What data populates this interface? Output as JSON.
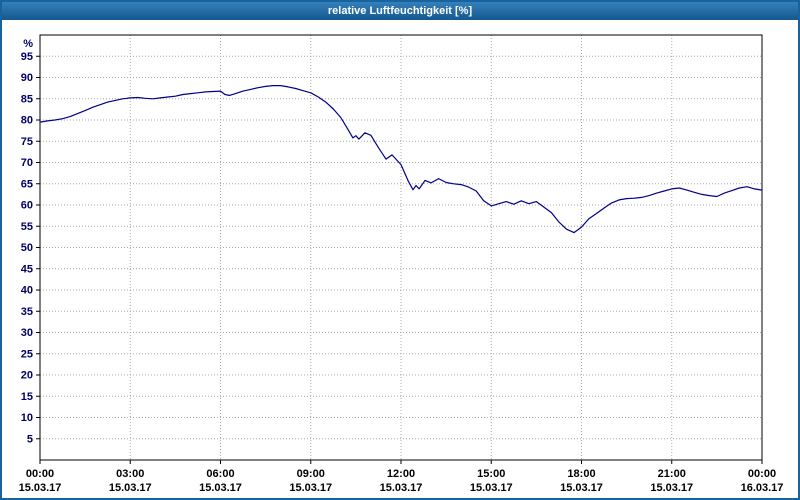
{
  "window": {
    "title": "relative Luftfeuchtigkeit [%]"
  },
  "chart_data": {
    "type": "line",
    "title": "relative Luftfeuchtigkeit [%]",
    "xlabel": "",
    "ylabel": "%",
    "ylim": [
      0,
      100
    ],
    "xlim_hours": [
      0,
      24
    ],
    "grid": true,
    "legend_position": "none",
    "line_color": "#00008b",
    "grid_color": "#a8a8a8",
    "axis_label_color": "#000066",
    "y_ticks": [
      5,
      10,
      15,
      20,
      25,
      30,
      35,
      40,
      45,
      50,
      55,
      60,
      65,
      70,
      75,
      80,
      85,
      90,
      95
    ],
    "x_ticks": [
      {
        "hour": 0,
        "time": "00:00",
        "date": "15.03.17"
      },
      {
        "hour": 3,
        "time": "03:00",
        "date": "15.03.17"
      },
      {
        "hour": 6,
        "time": "06:00",
        "date": "15.03.17"
      },
      {
        "hour": 9,
        "time": "09:00",
        "date": "15.03.17"
      },
      {
        "hour": 12,
        "time": "12:00",
        "date": "15.03.17"
      },
      {
        "hour": 15,
        "time": "15:00",
        "date": "15.03.17"
      },
      {
        "hour": 18,
        "time": "18:00",
        "date": "15.03.17"
      },
      {
        "hour": 21,
        "time": "21:00",
        "date": "15.03.17"
      },
      {
        "hour": 24,
        "time": "00:00",
        "date": "16.03.17"
      }
    ],
    "series": [
      {
        "name": "relative Luftfeuchtigkeit",
        "x": [
          0,
          0.25,
          0.5,
          0.75,
          1,
          1.25,
          1.5,
          1.75,
          2,
          2.25,
          2.5,
          2.75,
          3,
          3.25,
          3.5,
          3.75,
          4,
          4.25,
          4.5,
          4.75,
          5,
          5.25,
          5.5,
          5.75,
          6,
          6.15,
          6.3,
          6.5,
          6.75,
          7,
          7.25,
          7.5,
          7.75,
          8,
          8.25,
          8.5,
          8.75,
          9,
          9.25,
          9.5,
          9.75,
          10,
          10.25,
          10.4,
          10.5,
          10.6,
          10.8,
          11,
          11.25,
          11.5,
          11.7,
          12,
          12.25,
          12.4,
          12.5,
          12.6,
          12.8,
          13,
          13.25,
          13.5,
          13.75,
          14,
          14.25,
          14.5,
          14.75,
          15,
          15.25,
          15.5,
          15.75,
          16,
          16.25,
          16.5,
          16.75,
          17,
          17.25,
          17.5,
          17.75,
          18,
          18.25,
          18.5,
          18.75,
          19,
          19.25,
          19.5,
          19.75,
          20,
          20.25,
          20.5,
          20.75,
          21,
          21.25,
          21.5,
          21.75,
          22,
          22.25,
          22.5,
          22.75,
          23,
          23.25,
          23.5,
          23.75,
          24
        ],
        "y": [
          79.5,
          79.8,
          80,
          80.3,
          80.8,
          81.5,
          82.2,
          83,
          83.6,
          84.2,
          84.6,
          85,
          85.2,
          85.3,
          85.1,
          85,
          85.2,
          85.4,
          85.6,
          86,
          86.2,
          86.4,
          86.6,
          86.7,
          86.8,
          86,
          85.8,
          86.2,
          86.8,
          87.2,
          87.6,
          87.9,
          88.1,
          88.1,
          87.8,
          87.4,
          86.9,
          86.4,
          85.4,
          84.2,
          82.6,
          80.6,
          77.6,
          75.8,
          76.3,
          75.5,
          77,
          76.4,
          73.5,
          70.8,
          71.8,
          69.5,
          65.5,
          63.6,
          64.6,
          63.8,
          65.8,
          65.2,
          66.2,
          65.3,
          65,
          64.8,
          64.2,
          63.3,
          61,
          59.8,
          60.3,
          60.8,
          60.2,
          61,
          60.3,
          60.8,
          59.5,
          58.2,
          56,
          54.3,
          53.5,
          54.8,
          56.8,
          58,
          59.3,
          60.5,
          61.2,
          61.5,
          61.6,
          61.8,
          62.2,
          62.8,
          63.3,
          63.8,
          64,
          63.5,
          63,
          62.5,
          62.2,
          62,
          62.8,
          63.4,
          64,
          64.3,
          63.8,
          63.5
        ]
      }
    ]
  }
}
